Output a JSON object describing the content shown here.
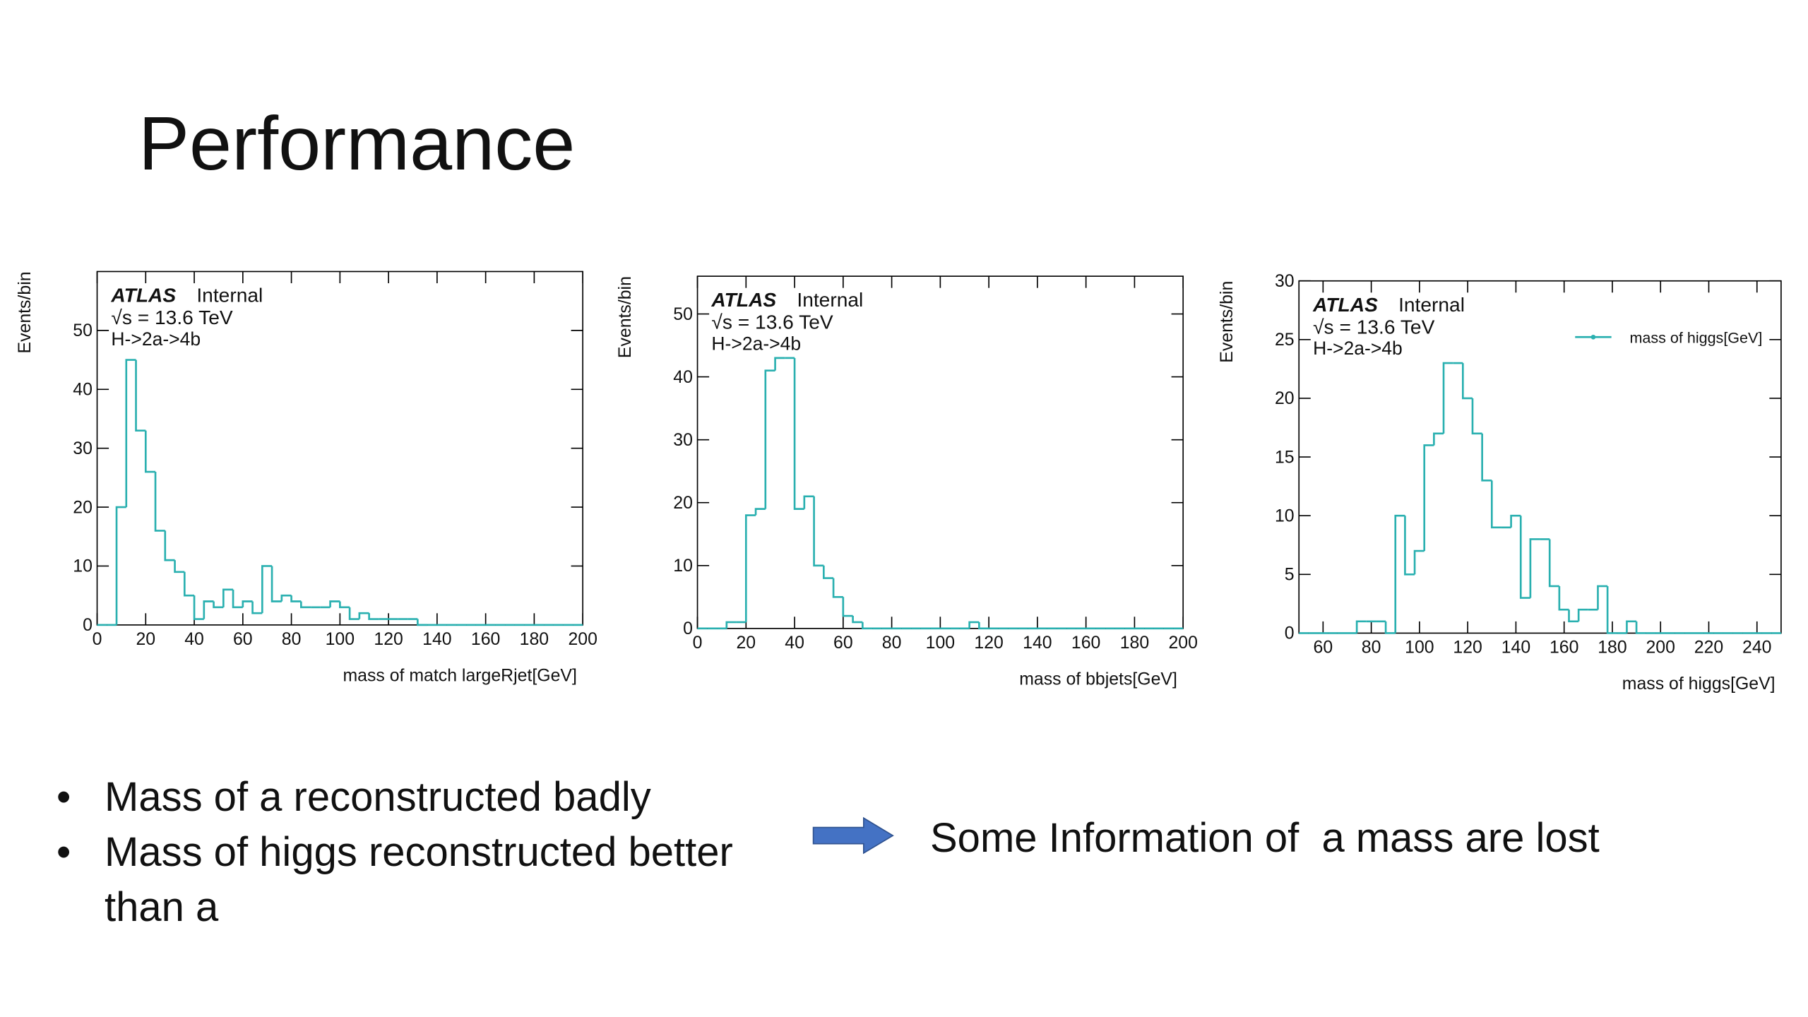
{
  "slide": {
    "title": "Performance",
    "bullets": [
      "Mass of a reconstructed badly",
      "Mass of higgs reconstructed better than a"
    ],
    "conclusion": "Some Information of  a mass are lost"
  },
  "chart_data": [
    {
      "type": "histogram",
      "x_label": "mass of match largeRjet[GeV]",
      "y_label": "Events/bin",
      "annotations": {
        "experiment": "ATLAS",
        "status": "Internal",
        "energy": "√s = 13.6 TeV",
        "process": "H->2a->4b"
      },
      "bins": [
        0,
        4,
        8,
        12,
        16,
        20,
        24,
        28,
        32,
        36,
        40,
        44,
        48,
        52,
        56,
        60,
        64,
        68,
        72,
        76,
        80,
        84,
        88,
        92,
        96,
        100,
        104,
        108,
        112,
        116,
        120,
        124,
        128,
        132,
        136,
        140,
        144,
        148,
        152,
        156,
        160,
        164,
        168,
        172,
        176,
        180,
        184,
        188,
        192,
        196,
        200
      ],
      "series": [
        {
          "color": "#2ab0b0",
          "values": [
            0,
            0,
            20,
            45,
            33,
            26,
            16,
            11,
            9,
            5,
            1,
            4,
            3,
            6,
            3,
            4,
            2,
            10,
            4,
            5,
            4,
            3,
            3,
            3,
            4,
            3,
            1,
            2,
            1,
            1,
            1,
            1,
            1,
            0,
            0,
            0,
            0,
            0,
            0,
            0,
            0,
            0,
            0,
            0,
            0,
            0,
            0,
            0,
            0,
            0
          ]
        }
      ],
      "xlim": [
        0,
        200
      ],
      "ylim": [
        0,
        60
      ],
      "xticks": [
        0,
        20,
        40,
        60,
        80,
        100,
        120,
        140,
        160,
        180,
        200
      ],
      "yticks": [
        0,
        10,
        20,
        30,
        40,
        50
      ]
    },
    {
      "type": "histogram",
      "x_label": "mass of bbjets[GeV]",
      "y_label": "Events/bin",
      "annotations": {
        "experiment": "ATLAS",
        "status": "Internal",
        "energy": "√s = 13.6 TeV",
        "process": "H->2a->4b"
      },
      "bins": [
        0,
        4,
        8,
        12,
        16,
        20,
        24,
        28,
        32,
        36,
        40,
        44,
        48,
        52,
        56,
        60,
        64,
        68,
        72,
        76,
        80,
        84,
        88,
        92,
        96,
        100,
        104,
        108,
        112,
        116,
        120,
        124,
        128,
        132,
        136,
        140,
        144,
        148,
        152,
        156,
        160,
        164,
        168,
        172,
        176,
        180,
        184,
        188,
        192,
        196,
        200
      ],
      "series": [
        {
          "color": "#2ab0b0",
          "values": [
            0,
            0,
            0,
            1,
            1,
            18,
            19,
            41,
            43,
            43,
            19,
            21,
            10,
            8,
            5,
            2,
            1,
            0,
            0,
            0,
            0,
            0,
            0,
            0,
            0,
            0,
            0,
            0,
            1,
            0,
            0,
            0,
            0,
            0,
            0,
            0,
            0,
            0,
            0,
            0,
            0,
            0,
            0,
            0,
            0,
            0,
            0,
            0,
            0,
            0
          ]
        }
      ],
      "xlim": [
        0,
        200
      ],
      "ylim": [
        0,
        56
      ],
      "xticks": [
        0,
        20,
        40,
        60,
        80,
        100,
        120,
        140,
        160,
        180,
        200
      ],
      "yticks": [
        0,
        10,
        20,
        30,
        40,
        50
      ]
    },
    {
      "type": "histogram",
      "x_label": "mass of higgs[GeV]",
      "y_label": "Events/bin",
      "annotations": {
        "experiment": "ATLAS",
        "status": "Internal",
        "energy": "√s = 13.6 TeV",
        "process": "H->2a->4b"
      },
      "legend": "top-right",
      "bins": [
        50,
        54,
        58,
        62,
        66,
        70,
        74,
        78,
        82,
        86,
        90,
        94,
        98,
        102,
        106,
        110,
        114,
        118,
        122,
        126,
        130,
        134,
        138,
        142,
        146,
        150,
        154,
        158,
        162,
        166,
        170,
        174,
        178,
        182,
        186,
        190,
        194,
        198,
        202,
        206,
        210,
        214,
        218,
        222,
        226,
        230,
        234,
        238,
        242,
        246,
        250
      ],
      "series": [
        {
          "name": "mass of higgs[GeV]",
          "color": "#2ab0b0",
          "values": [
            0,
            0,
            0,
            0,
            0,
            0,
            1,
            1,
            1,
            0,
            10,
            5,
            7,
            16,
            17,
            23,
            23,
            20,
            17,
            13,
            9,
            9,
            10,
            3,
            8,
            8,
            4,
            2,
            1,
            2,
            2,
            4,
            0,
            0,
            1,
            0,
            0,
            0,
            0,
            0,
            0,
            0,
            0,
            0,
            0,
            0,
            0,
            0,
            0,
            0
          ]
        }
      ],
      "xlim": [
        50,
        250
      ],
      "ylim": [
        0,
        30
      ],
      "xticks": [
        60,
        80,
        100,
        120,
        140,
        160,
        180,
        200,
        220,
        240
      ],
      "yticks": [
        0,
        5,
        10,
        15,
        20,
        25,
        30
      ]
    }
  ]
}
